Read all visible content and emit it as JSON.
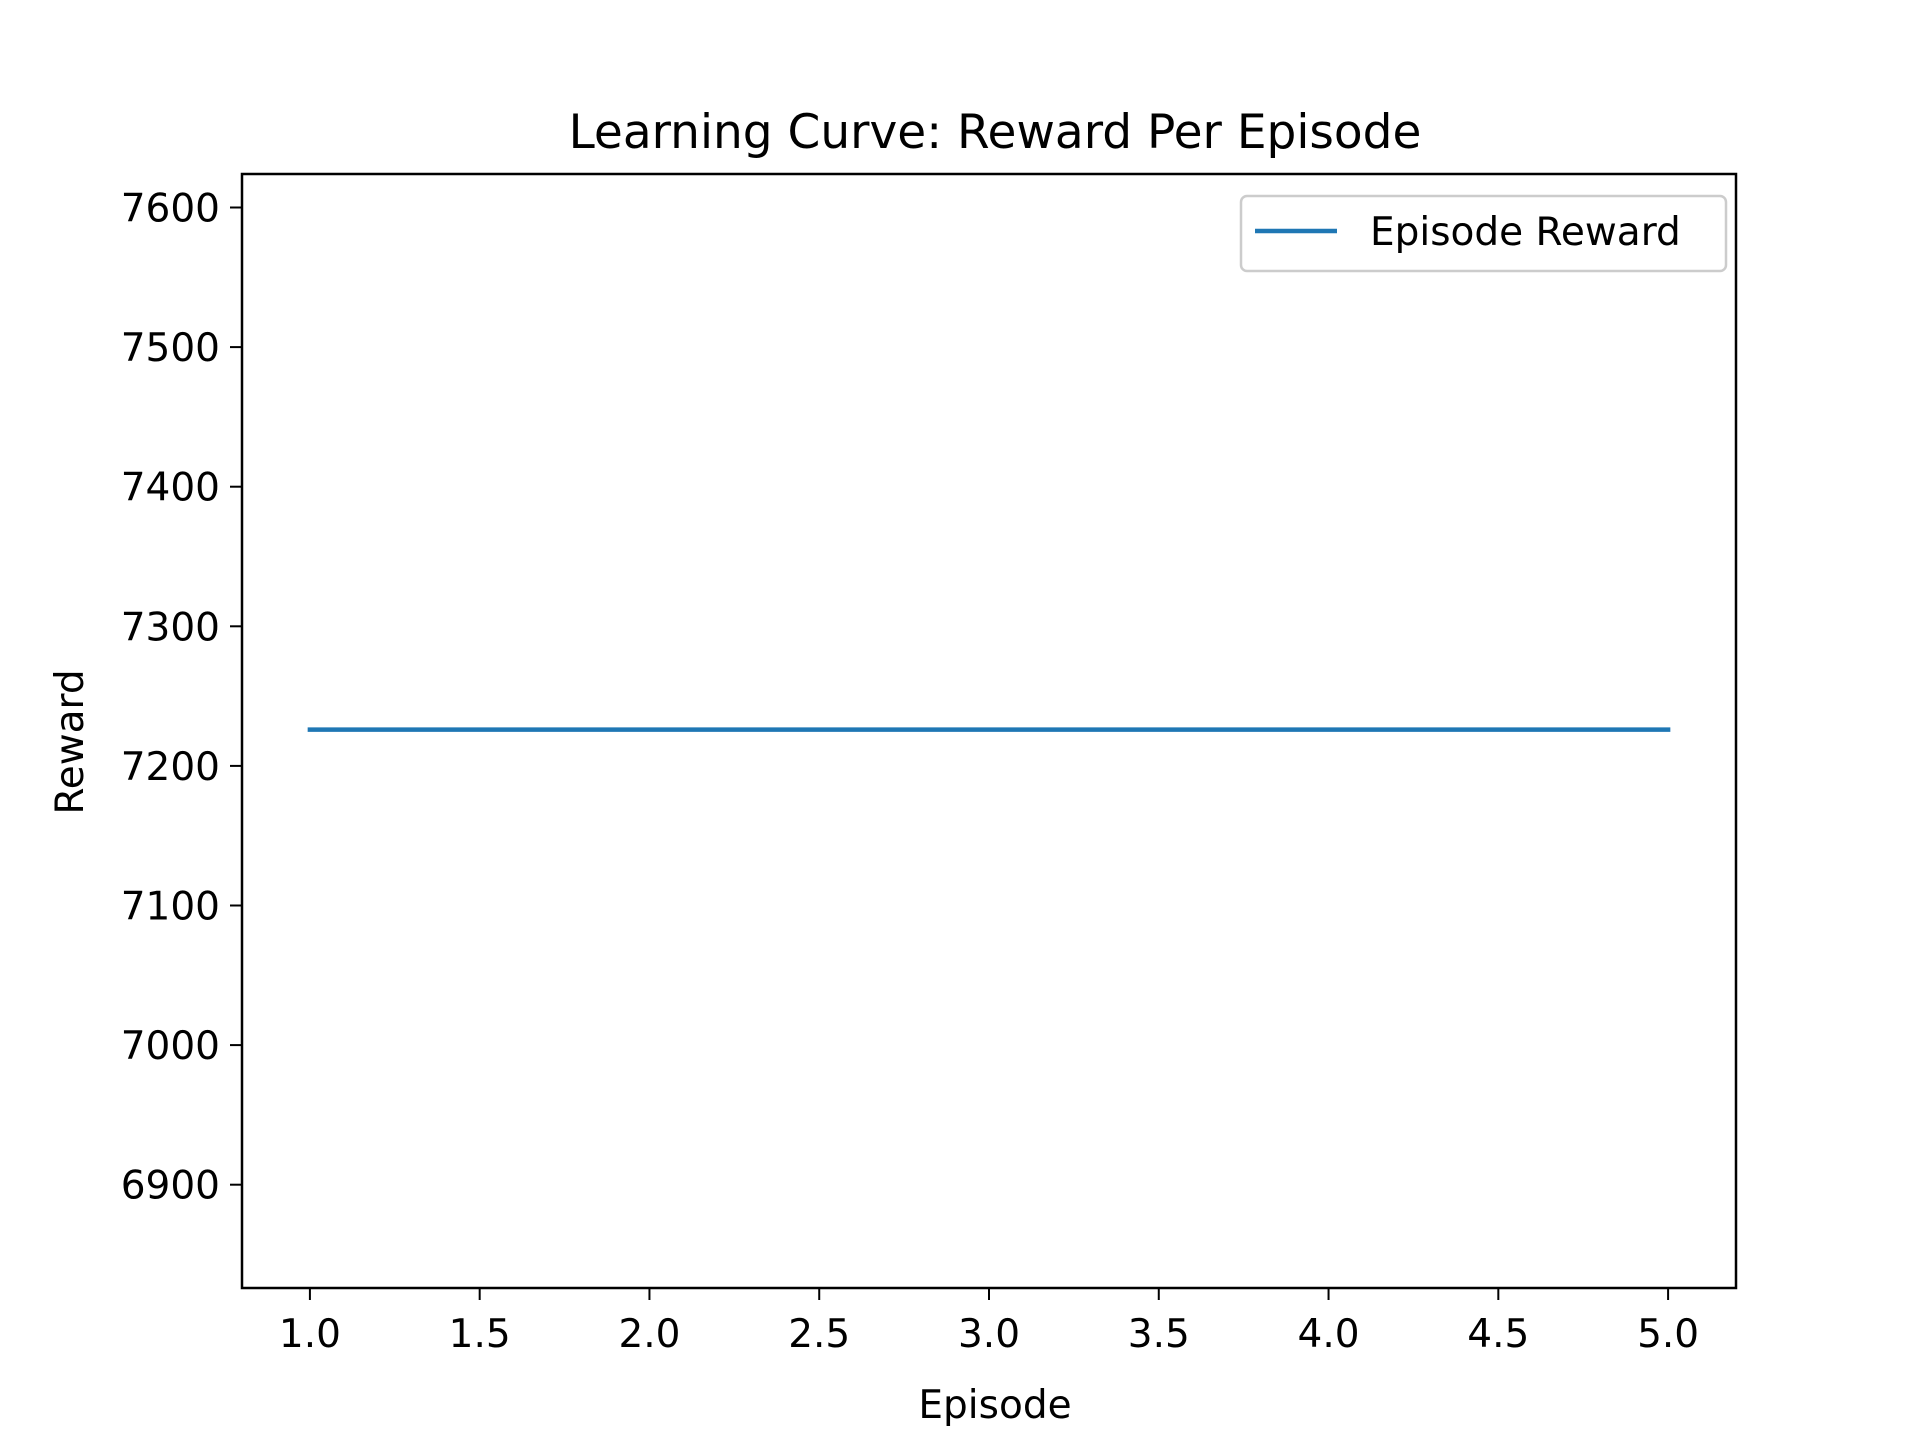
{
  "chart_data": {
    "type": "line",
    "title": "Learning Curve: Reward Per Episode",
    "xlabel": "Episode",
    "ylabel": "Reward",
    "xlim": [
      0.8,
      5.2
    ],
    "ylim": [
      6826,
      7624
    ],
    "xticks": [
      1.0,
      1.5,
      2.0,
      2.5,
      3.0,
      3.5,
      4.0,
      4.5,
      5.0
    ],
    "xtick_labels": [
      "1.0",
      "1.5",
      "2.0",
      "2.5",
      "3.0",
      "3.5",
      "4.0",
      "4.5",
      "5.0"
    ],
    "yticks": [
      6900,
      7000,
      7100,
      7200,
      7300,
      7400,
      7500,
      7600
    ],
    "ytick_labels": [
      "6900",
      "7000",
      "7100",
      "7200",
      "7300",
      "7400",
      "7500",
      "7600"
    ],
    "grid": false,
    "legend_position": "top-right",
    "series": [
      {
        "name": "Episode Reward",
        "color": "#1f77b4",
        "x": [
          1,
          2,
          3,
          4,
          5
        ],
        "y": [
          7226,
          7226,
          7226,
          7226,
          7226
        ]
      }
    ]
  }
}
